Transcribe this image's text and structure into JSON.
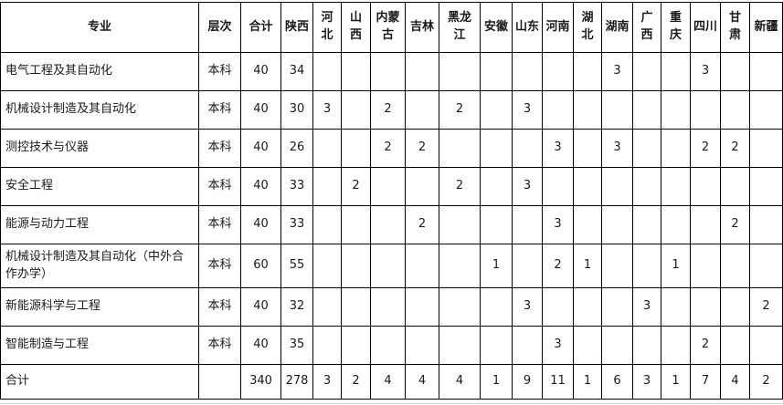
{
  "colors": {
    "border": "#000000",
    "text": "#1a1a1a",
    "grid_light": "#d0d7e5"
  },
  "table": {
    "columns": [
      {
        "key": "major",
        "label": "专业"
      },
      {
        "key": "level",
        "label": "层次"
      },
      {
        "key": "total",
        "label": "合计"
      },
      {
        "key": "shaanxi",
        "label": "陕西"
      },
      {
        "key": "hebei",
        "label": "河北"
      },
      {
        "key": "shanxi",
        "label": "山西"
      },
      {
        "key": "neimenggu",
        "label": "内蒙古"
      },
      {
        "key": "jilin",
        "label": "吉林"
      },
      {
        "key": "heilongjiang",
        "label": "黑龙江"
      },
      {
        "key": "anhui",
        "label": "安徽"
      },
      {
        "key": "shandong",
        "label": "山东"
      },
      {
        "key": "henan",
        "label": "河南"
      },
      {
        "key": "hubei",
        "label": "湖北"
      },
      {
        "key": "hunan",
        "label": "湖南"
      },
      {
        "key": "guangxi",
        "label": "广西"
      },
      {
        "key": "chongqing",
        "label": "重庆"
      },
      {
        "key": "sichuan",
        "label": "四川"
      },
      {
        "key": "gansu",
        "label": "甘肃"
      },
      {
        "key": "xinjiang",
        "label": "新疆"
      }
    ],
    "rows": [
      [
        "电气工程及其自动化",
        "本科",
        "40",
        "34",
        "",
        "",
        "",
        "",
        "",
        "",
        "",
        "",
        "",
        "3",
        "",
        "",
        "3",
        "",
        ""
      ],
      [
        "机械设计制造及其自动化",
        "本科",
        "40",
        "30",
        "3",
        "",
        "2",
        "",
        "2",
        "",
        "3",
        "",
        "",
        "",
        "",
        "",
        "",
        "",
        ""
      ],
      [
        "测控技术与仪器",
        "本科",
        "40",
        "26",
        "",
        "",
        "2",
        "2",
        "",
        "",
        "",
        "3",
        "",
        "3",
        "",
        "",
        "2",
        "2",
        ""
      ],
      [
        "安全工程",
        "本科",
        "40",
        "33",
        "",
        "2",
        "",
        "",
        "2",
        "",
        "3",
        "",
        "",
        "",
        "",
        "",
        "",
        "",
        ""
      ],
      [
        "能源与动力工程",
        "本科",
        "40",
        "33",
        "",
        "",
        "",
        "2",
        "",
        "",
        "",
        "3",
        "",
        "",
        "",
        "",
        "",
        "2",
        ""
      ],
      [
        "机械设计制造及其自动化（中外合作办学）",
        "本科",
        "60",
        "55",
        "",
        "",
        "",
        "",
        "",
        "1",
        "",
        "2",
        "1",
        "",
        "",
        "1",
        "",
        "",
        ""
      ],
      [
        "新能源科学与工程",
        "本科",
        "40",
        "32",
        "",
        "",
        "",
        "",
        "",
        "",
        "3",
        "",
        "",
        "",
        "3",
        "",
        "",
        "",
        "2"
      ],
      [
        "智能制造与工程",
        "本科",
        "40",
        "35",
        "",
        "",
        "",
        "",
        "",
        "",
        "",
        "3",
        "",
        "",
        "",
        "",
        "2",
        "",
        ""
      ],
      [
        "合计",
        "",
        "340",
        "278",
        "3",
        "2",
        "4",
        "4",
        "4",
        "1",
        "9",
        "11",
        "1",
        "6",
        "3",
        "1",
        "7",
        "4",
        "2"
      ]
    ],
    "total_row_label": "合计"
  }
}
